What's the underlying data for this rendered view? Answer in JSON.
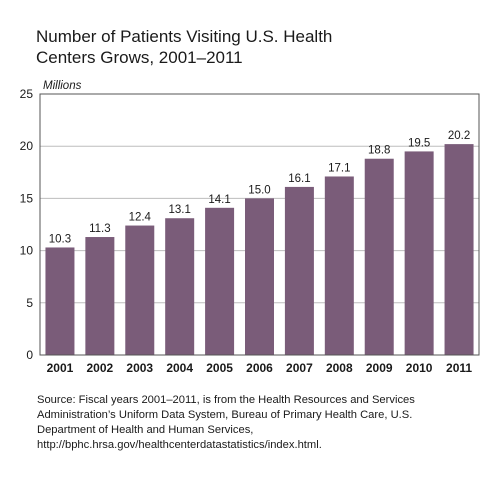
{
  "chart_data": {
    "type": "bar",
    "title": [
      "Number of Patients Visiting U.S. Health",
      "Centers Grows, 2001–2011"
    ],
    "ylabel": "Millions",
    "xlabel": "",
    "categories": [
      "2001",
      "2002",
      "2003",
      "2004",
      "2005",
      "2006",
      "2007",
      "2008",
      "2009",
      "2010",
      "2011"
    ],
    "values": [
      10.3,
      11.3,
      12.4,
      13.1,
      14.1,
      15.0,
      16.1,
      17.1,
      18.8,
      19.5,
      20.2
    ],
    "value_labels": [
      "10.3",
      "11.3",
      "12.4",
      "13.1",
      "14.1",
      "15.0",
      "16.1",
      "17.1",
      "18.8",
      "19.5",
      "20.2"
    ],
    "ylim": [
      0,
      25
    ],
    "yticks": [
      "0",
      "5",
      "10",
      "15",
      "20",
      "25"
    ],
    "grid": true,
    "legend": "none",
    "bar_color": "#7a5c79"
  },
  "source": [
    "Source: Fiscal years 2001–2011, is from the Health Resources and Services",
    "Administration’s Uniform Data System, Bureau of Primary Health Care, U.S.",
    "Department of Health and Human Services,",
    "http://bphc.hrsa.gov/healthcenterdatastatistics/index.html."
  ]
}
